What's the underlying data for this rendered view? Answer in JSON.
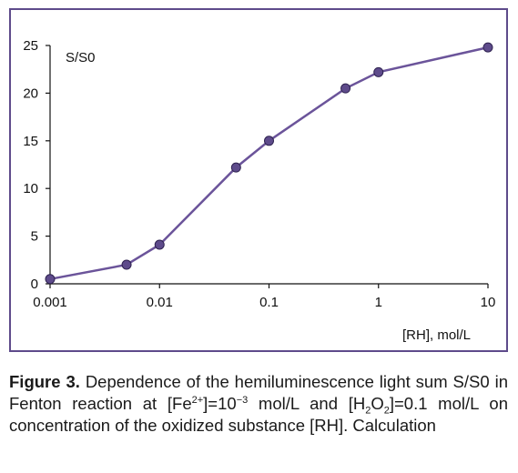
{
  "chart_data": {
    "type": "line",
    "x_scale": "log",
    "x": [
      0.001,
      0.005,
      0.01,
      0.05,
      0.1,
      0.5,
      1,
      10
    ],
    "series": [
      {
        "values": [
          0.5,
          2.0,
          4.1,
          12.2,
          15.0,
          20.5,
          22.2,
          24.8
        ]
      }
    ],
    "xlim": [
      0.001,
      10
    ],
    "ylim": [
      0,
      25
    ],
    "xticks": [
      "0.001",
      "0.01",
      "0.1",
      "1",
      "10"
    ],
    "yticks": [
      "0",
      "5",
      "10",
      "15",
      "20",
      "25"
    ],
    "ylabel": "S/S0",
    "xlabel": "[RH],  mol/L",
    "grid": false,
    "line_color": "#6b549a",
    "marker_color": "#5e4b8b",
    "border_color": "#5e4b8b"
  },
  "caption": {
    "label": "Figure 3.",
    "t1": " Dependence of the hemiluminescence light sum S/S0 in Fenton reaction at [Fe",
    "fe_charge": "2+",
    "t2": "]=10",
    "exp": "−3",
    "t3": " mol/L and [H",
    "h_sub": "2",
    "t4": "O",
    "o_sub": "2",
    "t5": "]=0.1 mol/L on concentration of the oxidized substance [RH]. Calculation"
  }
}
